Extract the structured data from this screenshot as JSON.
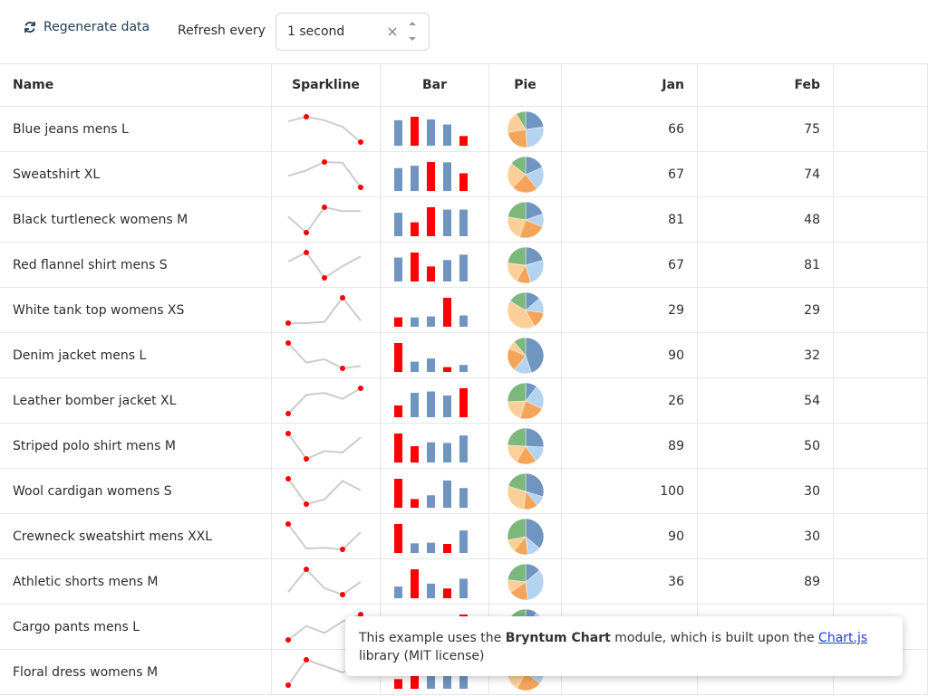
{
  "toolbar": {
    "button": "Regenerate data",
    "refresh_label": "Refresh every",
    "refresh_value": "1 second"
  },
  "columns": [
    "Name",
    "Sparkline",
    "Bar",
    "Pie",
    "Jan",
    "Feb"
  ],
  "rows": [
    {
      "name": "Blue jeans mens L",
      "values": [
        66,
        75,
        68,
        55,
        25
      ]
    },
    {
      "name": "Sweatshirt XL",
      "values": [
        67,
        74,
        85,
        84,
        52
      ]
    },
    {
      "name": "Black turtleneck womens M",
      "values": [
        81,
        48,
        100,
        92,
        92
      ]
    },
    {
      "name": "Red flannel shirt mens S",
      "values": [
        67,
        81,
        42,
        60,
        75
      ]
    },
    {
      "name": "White tank top womens XS",
      "values": [
        29,
        29,
        32,
        90,
        35
      ]
    },
    {
      "name": "Denim jacket mens L",
      "values": [
        90,
        32,
        42,
        15,
        22
      ]
    },
    {
      "name": "Leather bomber jacket XL",
      "values": [
        26,
        54,
        57,
        48,
        64
      ]
    },
    {
      "name": "Striped polo shirt mens M",
      "values": [
        89,
        50,
        62,
        60,
        83
      ]
    },
    {
      "name": "Wool cardigan womens S",
      "values": [
        100,
        30,
        43,
        94,
        68
      ]
    },
    {
      "name": "Crewneck sweatshirt mens XXL",
      "values": [
        90,
        30,
        32,
        28,
        70
      ]
    },
    {
      "name": "Athletic shorts mens M",
      "values": [
        36,
        89,
        45,
        30,
        60
      ]
    },
    {
      "name": "Cargo pants mens L",
      "values": [
        30,
        60,
        45,
        70,
        85
      ]
    },
    {
      "name": "Floral dress womens M",
      "values": [
        20,
        60,
        50,
        40,
        55
      ]
    }
  ],
  "tooltip": {
    "before": "This example uses the ",
    "bold": "Bryntum Chart",
    "middle": " module, which is built upon the ",
    "link": "Chart.js",
    "after": " library (MIT license)"
  },
  "colors": {
    "line": "#cccccc",
    "highlight": "#ff0000",
    "bar": "#6f95c0",
    "pie": [
      "#6f95c0",
      "#b4d3ef",
      "#f5a55a",
      "#fccf98",
      "#7cb87c"
    ]
  }
}
